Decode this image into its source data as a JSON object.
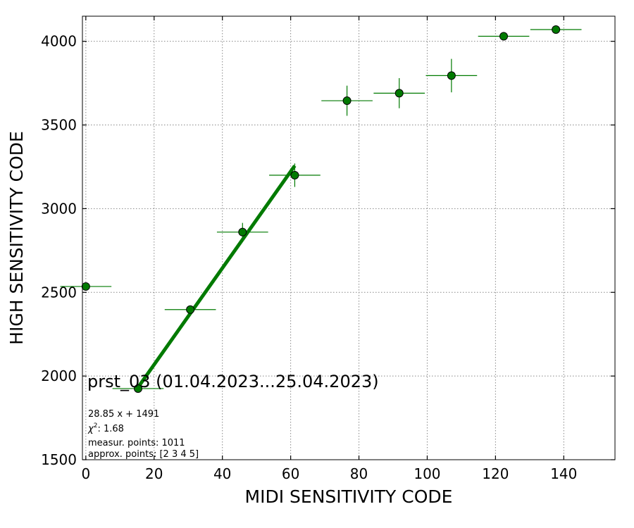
{
  "chart_data": {
    "type": "scatter",
    "xlabel": "MIDI SENSITIVITY CODE",
    "ylabel": "HIGH SENSITIVITY CODE",
    "xlim": [
      -1,
      155
    ],
    "ylim": [
      1500,
      4150
    ],
    "xticks": [
      0,
      20,
      40,
      60,
      80,
      100,
      120,
      140
    ],
    "yticks": [
      1500,
      2000,
      2500,
      3000,
      3500,
      4000
    ],
    "grid": true,
    "color": "#007a00",
    "points": [
      {
        "x": 0.0,
        "y": 2535,
        "xerr": 7.5,
        "yerr": 10
      },
      {
        "x": 15.3,
        "y": 1925,
        "xerr": 7.5,
        "yerr": 10
      },
      {
        "x": 30.6,
        "y": 2397,
        "xerr": 7.5,
        "yerr": 20
      },
      {
        "x": 45.9,
        "y": 2860,
        "xerr": 7.5,
        "yerr": 55
      },
      {
        "x": 61.2,
        "y": 3200,
        "xerr": 7.5,
        "yerr": 70
      },
      {
        "x": 76.5,
        "y": 3645,
        "xerr": 7.5,
        "yerr": 90
      },
      {
        "x": 91.8,
        "y": 3690,
        "xerr": 7.5,
        "yerr": 90
      },
      {
        "x": 107.1,
        "y": 3795,
        "xerr": 7.5,
        "yerr": 100
      },
      {
        "x": 122.4,
        "y": 4030,
        "xerr": 7.5,
        "yerr": 25
      },
      {
        "x": 137.7,
        "y": 4070,
        "xerr": 7.5,
        "yerr": 10
      }
    ],
    "fit": {
      "slope": 28.85,
      "intercept": 1491,
      "x_range": [
        15.3,
        61.2
      ]
    },
    "annotations": {
      "title": "prst_03 (01.04.2023...25.04.2023)",
      "equation": "28.85 x + 1491",
      "chi2_label": "χ",
      "chi2_sup": "2",
      "chi2_value": ": 1.68",
      "measured": "measur. points: 1011",
      "approx": "approx. points: [2 3 4 5]"
    }
  }
}
